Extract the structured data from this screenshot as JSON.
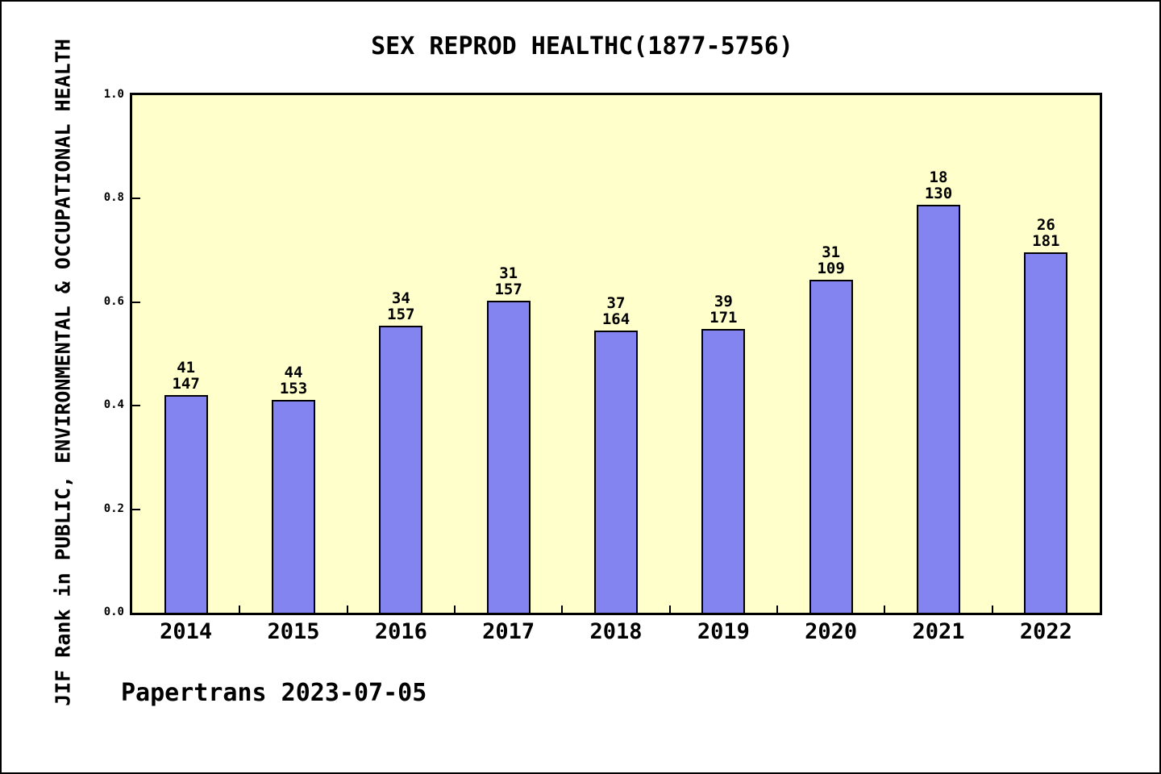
{
  "chart_data": {
    "type": "bar",
    "title": "SEX REPROD HEALTHC(1877-5756)",
    "ylabel": "JIF Rank in PUBLIC, ENVIRONMENTAL & OCCUPATIONAL HEALTH",
    "xlabel": "",
    "categories": [
      "2014",
      "2015",
      "2016",
      "2017",
      "2018",
      "2019",
      "2020",
      "2021",
      "2022"
    ],
    "values": [
      0.42,
      0.411,
      0.554,
      0.603,
      0.545,
      0.548,
      0.643,
      0.788,
      0.696
    ],
    "bar_label_rank": [
      41,
      44,
      34,
      31,
      37,
      39,
      31,
      18,
      26
    ],
    "bar_label_total": [
      147,
      153,
      157,
      157,
      164,
      171,
      109,
      130,
      181
    ],
    "ylim": [
      0.0,
      1.0
    ],
    "yticks": [
      "1.0",
      "0.8",
      "0.6",
      "0.4",
      "0.2",
      "0.0"
    ],
    "grid": false,
    "legend": null,
    "colors": {
      "bar_fill": "#8484F0",
      "bar_edge": "#000000",
      "plot_bg": "#FFFFCC",
      "canvas_bg": "#FFFFFF",
      "text": "#000000"
    }
  },
  "footer": "Papertrans 2023-07-05"
}
